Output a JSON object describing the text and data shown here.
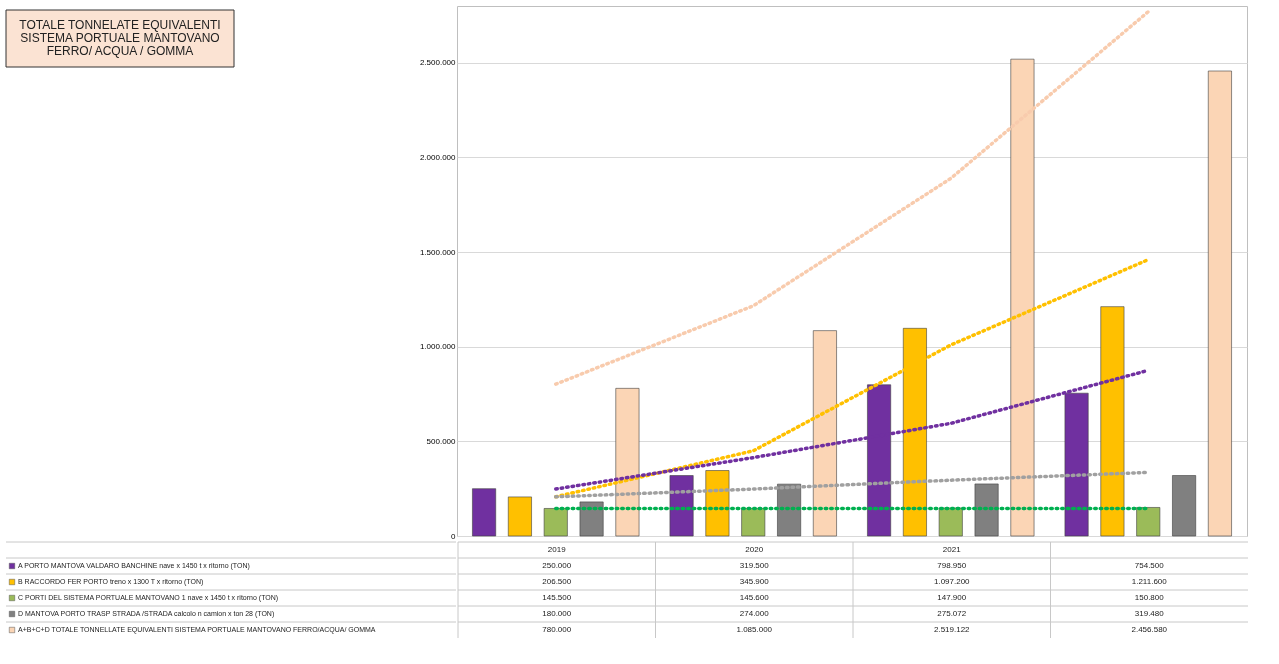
{
  "chart_data": {
    "type": "bar",
    "title": "TOTALE TONNELATE EQUIVALENTI\nSISTEMA PORTUALE MANTOVANO\nFERRO/ ACQUA / GOMMA",
    "categories": [
      "2019",
      "2020",
      "2021",
      null
    ],
    "series": [
      {
        "name": "A PORTO MANTOVA VALDARO BANCHINE  nave x 1450 t x ritorno   (TON)",
        "color": "#7030a0",
        "values": [
          250000,
          319500,
          798950,
          754500
        ],
        "value_labels": [
          "250.000",
          "319.500",
          "798.950",
          "754.500"
        ]
      },
      {
        "name": "B RACCORDO FER PORTO  treno x 1300 T x ritorno (TON)",
        "color": "#ffc000",
        "values": [
          206500,
          345900,
          1097200,
          1211600
        ],
        "value_labels": [
          "206.500",
          "345.900",
          "1.097.200",
          "1.211.600"
        ]
      },
      {
        "name": "C PORTI DEL SISTEMA PORTUALE MANTOVANO 1 nave x 1450 t x ritorno (TON)",
        "color": "#9bbb59",
        "values": [
          145500,
          145600,
          147900,
          150800
        ],
        "value_labels": [
          "145.500",
          "145.600",
          "147.900",
          "150.800"
        ]
      },
      {
        "name": "D MANTOVA PORTO TRASP STRADA /STRADA calcolo      n camion x ton 28 (TON)",
        "color": "#808080",
        "values": [
          180000,
          274000,
          275072,
          319480
        ],
        "value_labels": [
          "180.000",
          "274.000",
          "275.072",
          "319.480"
        ]
      },
      {
        "name": "A+B+C+D TOTALE TONNELLATE EQUIVALENTI SISTEMA PORTUALE MANTOVANO FERRO/ACQUA/ GOMMA",
        "color": "#fbd5b5",
        "values": [
          780000,
          1085000,
          2519122,
          2456580
        ],
        "value_labels": [
          "780.000",
          "1.085.000",
          "2.519.122",
          "2.456.580"
        ]
      },
      {
        "type": "line",
        "color": "#f8cbad",
        "line_style": "dotted",
        "values": [
          802000,
          1216000,
          1889000,
          2770000
        ]
      },
      {
        "type": "line",
        "color": "#ffc000",
        "line_style": "dotted",
        "values": [
          207000,
          450000,
          1009000,
          1460000
        ]
      },
      {
        "type": "line",
        "color": "#7030a0",
        "line_style": "dotted",
        "values": [
          248000,
          414000,
          595000,
          875000
        ]
      },
      {
        "type": "line",
        "color": "#a0a0a0",
        "line_style": "dotted",
        "values": [
          207000,
          248000,
          295000,
          336000
        ]
      },
      {
        "type": "line",
        "color": "#00b050",
        "line_style": "dotted",
        "values": [
          145000,
          145000,
          145000,
          145000
        ]
      }
    ],
    "ylim": [
      0,
      2800000
    ],
    "yticks": [
      {
        "value": 0,
        "label": "0"
      },
      {
        "value": 500000,
        "label": "500.000"
      },
      {
        "value": 1000000,
        "label": "1.000.000"
      },
      {
        "value": 1500000,
        "label": "1.500.000"
      },
      {
        "value": 2000000,
        "label": "2.000.000"
      },
      {
        "value": 2500000,
        "label": "2.500.000"
      }
    ],
    "grid": "y",
    "legend": "bottom"
  }
}
